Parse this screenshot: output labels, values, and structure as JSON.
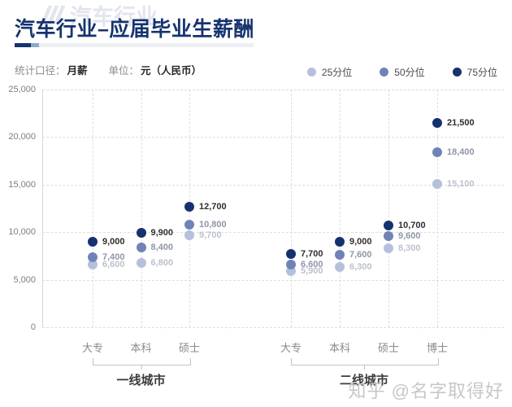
{
  "header": {
    "title": "汽车行业–应届毕业生薪酬",
    "watermark_top": "汽车行业",
    "watermark_bottom": "知乎 @名字取得好"
  },
  "meta": {
    "caliber_label": "统计口径：",
    "caliber_value": "月薪",
    "unit_label": "单位：",
    "unit_value": "元（人民币）"
  },
  "legend": [
    {
      "id": "p25",
      "label": "25分位",
      "color": "#b6c0dc"
    },
    {
      "id": "p50",
      "label": "50分位",
      "color": "#7083b8"
    },
    {
      "id": "p75",
      "label": "75分位",
      "color": "#16316f"
    }
  ],
  "colors": {
    "title": "#16336e",
    "divider_dark": "#16336e",
    "divider_mid": "#8fa6c9",
    "p25": "#b6c0dc",
    "p50": "#7083b8",
    "p75": "#16316f"
  },
  "chart_data": {
    "type": "scatter",
    "title": "汽车行业–应届毕业生薪酬",
    "xlabel": "",
    "ylabel": "元（人民币）",
    "ylim": [
      0,
      25000
    ],
    "yticks": [
      0,
      5000,
      10000,
      15000,
      20000,
      25000
    ],
    "ytick_labels": [
      "0",
      "5,000",
      "10,000",
      "15,000",
      "20,000",
      "25,000"
    ],
    "grid": true,
    "legend_position": "top-right",
    "groups": [
      {
        "name": "一线城市",
        "categories": [
          "大专",
          "本科",
          "硕士"
        ],
        "series": [
          {
            "name": "25分位",
            "key": "p25",
            "values": [
              6600,
              6800,
              9700
            ]
          },
          {
            "name": "50分位",
            "key": "p50",
            "values": [
              7400,
              8400,
              10800
            ]
          },
          {
            "name": "75分位",
            "key": "p75",
            "values": [
              9000,
              9900,
              12700
            ]
          }
        ]
      },
      {
        "name": "二线城市",
        "categories": [
          "大专",
          "本科",
          "硕士",
          "博士"
        ],
        "series": [
          {
            "name": "25分位",
            "key": "p25",
            "values": [
              5900,
              6300,
              8300,
              15100
            ]
          },
          {
            "name": "50分位",
            "key": "p50",
            "values": [
              6600,
              7600,
              9600,
              18400
            ]
          },
          {
            "name": "75分位",
            "key": "p75",
            "values": [
              7700,
              9000,
              10700,
              21500
            ]
          }
        ]
      }
    ]
  }
}
